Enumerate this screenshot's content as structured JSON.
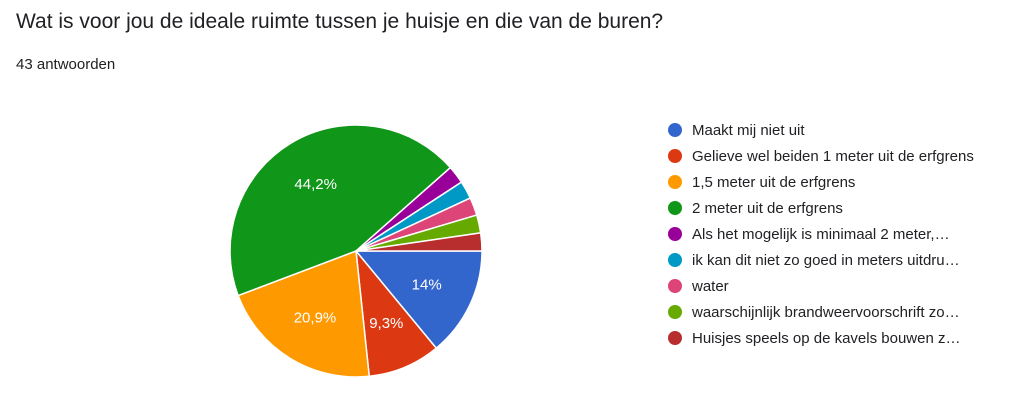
{
  "header": {
    "title": "Wat is voor jou de ideale ruimte tussen je huisje en die van de buren?",
    "response_count": "43 antwoorden"
  },
  "chart_data": {
    "type": "pie",
    "start_angle_deg": 90,
    "direction": "clockwise",
    "slices": [
      {
        "label": "Maakt mij niet uit",
        "value": 14.0,
        "display": "14%",
        "color": "#3366cc",
        "truncated": false
      },
      {
        "label": "Gelieve wel beiden 1 meter uit de erfgrens",
        "value": 9.3,
        "display": "9,3%",
        "color": "#dc3912",
        "truncated": false
      },
      {
        "label": "1,5 meter uit de erfgrens",
        "value": 20.9,
        "display": "20,9%",
        "color": "#ff9900",
        "truncated": false
      },
      {
        "label": "2 meter uit de erfgrens",
        "value": 44.2,
        "display": "44,2%",
        "color": "#109618",
        "truncated": false
      },
      {
        "label": "Als het mogelijk is minimaal 2 meter,…",
        "value": 2.3,
        "display": "",
        "color": "#990099",
        "truncated": true
      },
      {
        "label": "ik kan dit niet zo goed in meters uitdru…",
        "value": 2.3,
        "display": "",
        "color": "#0099c6",
        "truncated": true
      },
      {
        "label": "water",
        "value": 2.3,
        "display": "",
        "color": "#dd4477",
        "truncated": false
      },
      {
        "label": "waarschijnlijk brandweervoorschrift zo…",
        "value": 2.3,
        "display": "",
        "color": "#66aa00",
        "truncated": true
      },
      {
        "label": "Huisjes speels op de kavels bouwen z…",
        "value": 2.3,
        "display": "",
        "color": "#b82e2e",
        "truncated": true
      }
    ]
  }
}
